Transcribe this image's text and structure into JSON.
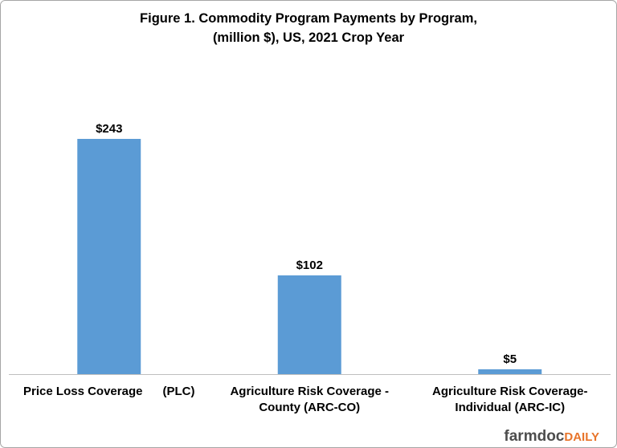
{
  "chart_data": {
    "type": "bar",
    "title": [
      "Figure 1.  Commodity Program Payments by Program,",
      "(million  $), US, 2021 Crop Year"
    ],
    "categories": [
      "Price Loss Coverage      (PLC)",
      "Agriculture Risk Coverage -\nCounty (ARC-CO)",
      "Agriculture Risk Coverage-\nIndividual (ARC-IC)"
    ],
    "values": [
      243,
      102,
      5
    ],
    "value_labels": [
      "$243",
      "$102",
      "$5"
    ],
    "color": "#5b9bd5"
  },
  "logo": [
    "farmdoc",
    "DAILY"
  ]
}
